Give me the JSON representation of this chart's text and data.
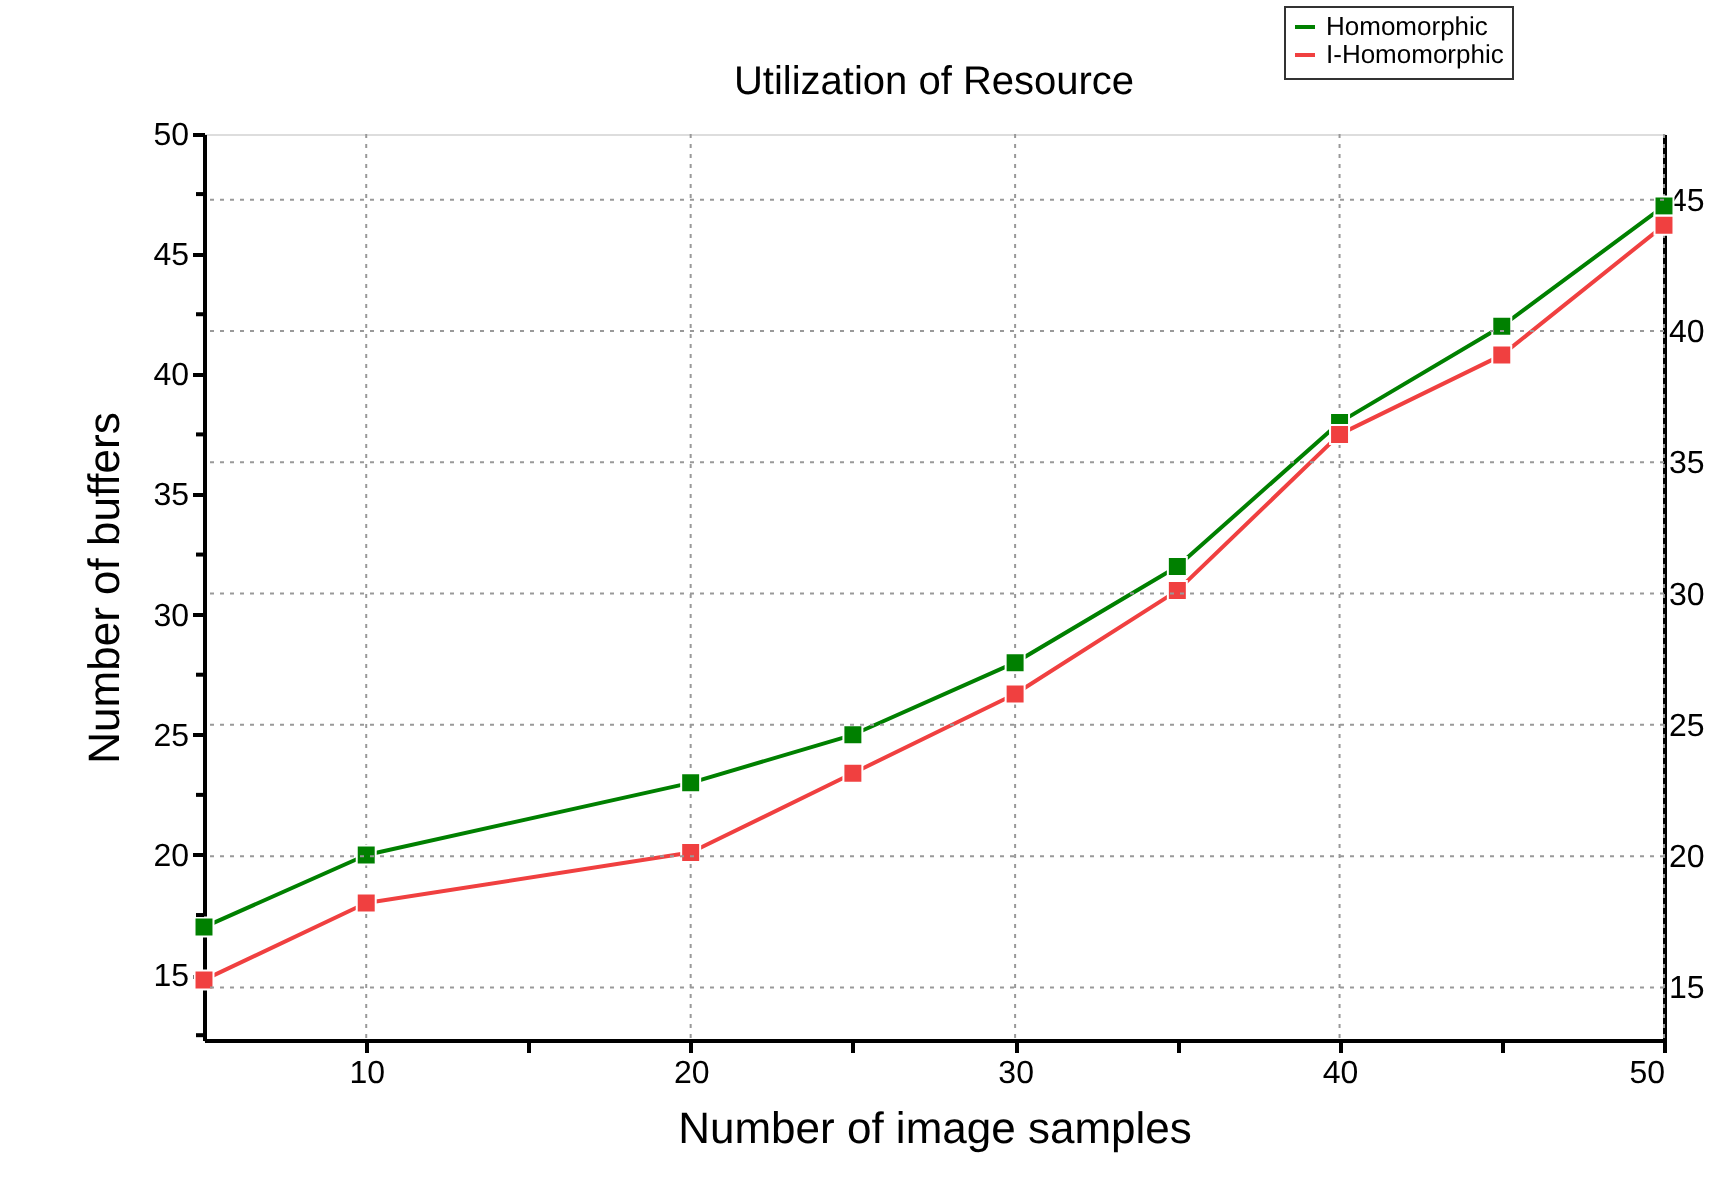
{
  "chart_data": {
    "type": "line",
    "title": "Utilization of Resource",
    "xlabel": "Number of image samples",
    "ylabel": "Number of buffers",
    "x": [
      5,
      10,
      20,
      25,
      30,
      35,
      40,
      45,
      50
    ],
    "series": [
      {
        "name": "Homomorphic",
        "color": "#008000",
        "values": [
          17,
          20,
          23,
          25,
          28,
          32,
          38,
          42,
          47
        ]
      },
      {
        "name": "I-Homomorphic",
        "color": "#f04040",
        "values": [
          14.8,
          18,
          20.1,
          23.4,
          26.7,
          31,
          37.5,
          40.8,
          46.2
        ]
      }
    ],
    "xlim": [
      5,
      50
    ],
    "xticks": [
      10,
      {
        "value": 15,
        "label": null
      },
      20,
      {
        "value": 25,
        "label": null
      },
      30,
      {
        "value": 35,
        "label": null
      },
      40,
      {
        "value": 45,
        "label": null
      },
      50
    ],
    "ylim": [
      12.3,
      50
    ],
    "yticks": [
      {
        "value": 12.5,
        "label": null
      },
      15,
      {
        "value": 17.5,
        "label": null
      },
      20,
      {
        "value": 22.5,
        "label": null
      },
      25,
      {
        "value": 27.5,
        "label": null
      },
      30,
      {
        "value": 32.5,
        "label": null
      },
      35,
      {
        "value": 37.5,
        "label": null
      },
      40,
      {
        "value": 42.5,
        "label": null
      },
      45,
      {
        "value": 47.5,
        "label": null
      },
      50
    ],
    "y2lim": [
      13,
      47.5
    ],
    "y2ticks": [
      15,
      20,
      25,
      30,
      35,
      40,
      45
    ],
    "grid": true,
    "legend": "top right",
    "marker": "square",
    "line_style": "solid"
  }
}
